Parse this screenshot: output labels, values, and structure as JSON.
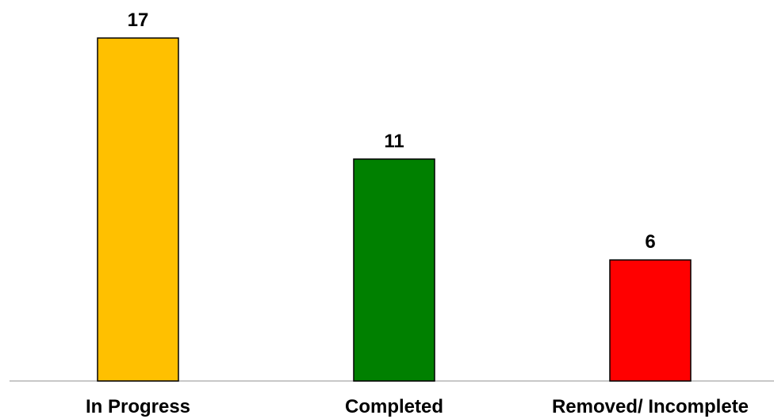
{
  "chart_data": {
    "type": "bar",
    "categories": [
      "In Progress",
      "Completed",
      "Removed/ Incomplete"
    ],
    "values": [
      17,
      11,
      6
    ],
    "colors": [
      "#FFC000",
      "#008000",
      "#FF0000"
    ],
    "ylim": [
      0,
      17
    ],
    "grid": false,
    "data_labels": true,
    "title": "",
    "xlabel": "",
    "ylabel": ""
  }
}
